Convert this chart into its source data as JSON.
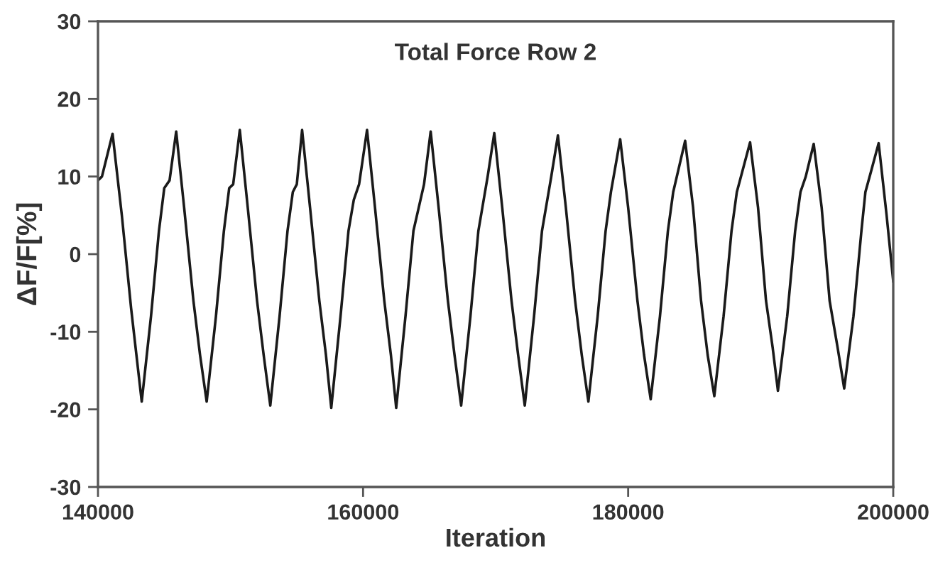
{
  "chart_data": {
    "type": "line",
    "title": "Total Force Row 2",
    "xlabel": "Iteration",
    "ylabel": "ΔF/F[%]",
    "xlim": [
      140000,
      200000
    ],
    "xticks": [
      140000,
      160000,
      180000,
      200000
    ],
    "ylim": [
      -30,
      30
    ],
    "yticks": [
      -30,
      -20,
      -10,
      0,
      10,
      20,
      30
    ],
    "grid": false,
    "legend": false,
    "marker": "none",
    "line_style": "solid",
    "series": [
      {
        "color": "#1a1a1a",
        "x": [
          140000,
          140300,
          141100,
          141800,
          142500,
          143300,
          144000,
          144600,
          145000,
          145400,
          145900,
          146500,
          147200,
          147700,
          148200,
          148900,
          149500,
          149900,
          150200,
          150700,
          151300,
          152000,
          152500,
          153000,
          153700,
          154300,
          154700,
          155000,
          155400,
          156000,
          156700,
          157200,
          157600,
          158300,
          158900,
          159300,
          159700,
          160300,
          160900,
          161600,
          162100,
          162500,
          163200,
          163800,
          164200,
          164600,
          165100,
          165700,
          166400,
          166900,
          167400,
          168100,
          168700,
          169100,
          169400,
          169900,
          170500,
          171200,
          171700,
          172200,
          172900,
          173500,
          173900,
          174200,
          174700,
          175300,
          176000,
          176500,
          177000,
          177700,
          178300,
          178700,
          179400,
          180000,
          180700,
          181200,
          181700,
          182400,
          183000,
          183400,
          184300,
          184900,
          185500,
          186000,
          186500,
          187200,
          187800,
          188200,
          189200,
          189800,
          190400,
          190900,
          191300,
          192000,
          192600,
          193000,
          193400,
          194000,
          194600,
          195200,
          195800,
          196300,
          197000,
          197600,
          197900,
          198300,
          198900,
          199500,
          200000
        ],
        "values": [
          9.5,
          10,
          15.5,
          5,
          -7,
          -19,
          -8,
          3,
          8.5,
          9.5,
          15.8,
          6,
          -6,
          -13,
          -19,
          -8,
          3,
          8.5,
          9,
          16,
          6,
          -6,
          -13,
          -19.5,
          -8,
          3,
          8,
          9,
          16,
          6,
          -6,
          -13,
          -19.8,
          -8,
          3,
          7,
          9,
          16,
          6,
          -6,
          -13,
          -19.8,
          -8,
          3,
          6,
          9,
          15.8,
          6,
          -6,
          -13,
          -19.5,
          -8,
          3,
          7,
          10,
          15.6,
          6,
          -6,
          -13,
          -19.5,
          -8,
          3,
          7,
          10,
          15.3,
          6,
          -6,
          -13,
          -19,
          -8,
          3,
          8,
          14.8,
          6,
          -6,
          -13,
          -18.7,
          -8,
          3,
          8,
          14.6,
          6,
          -6,
          -13,
          -18.3,
          -8,
          3,
          8,
          14.4,
          6,
          -6,
          -12,
          -17.6,
          -8,
          3,
          8,
          10,
          14.2,
          6,
          -6,
          -12,
          -17.3,
          -8,
          3,
          8,
          10.5,
          14.3,
          5,
          -3.5
        ]
      }
    ]
  }
}
